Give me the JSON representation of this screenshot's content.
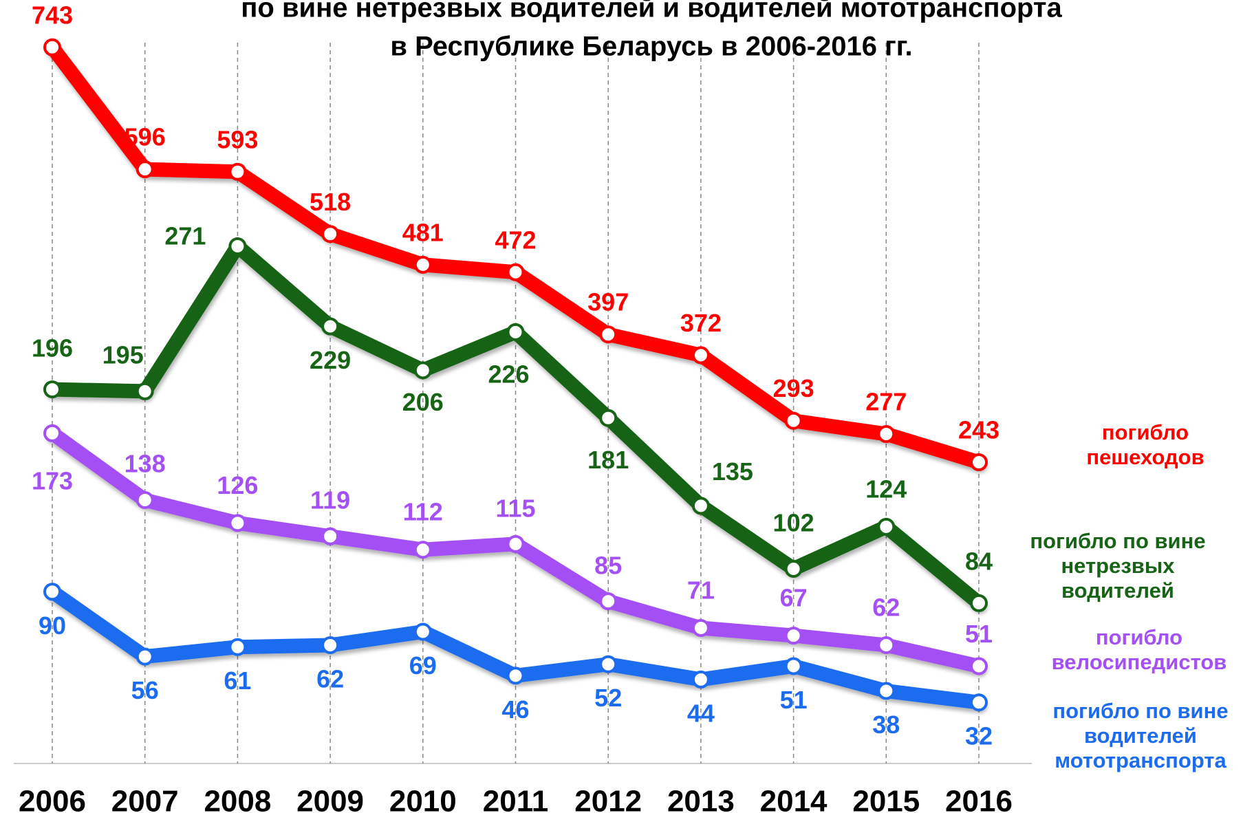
{
  "chart_data": {
    "type": "line",
    "title": [
      "по вине нетрезвых водителей и водителей мототранспорта",
      "в Республике Беларусь в 2006-2016 гг."
    ],
    "categories": [
      "2006",
      "2007",
      "2008",
      "2009",
      "2010",
      "2011",
      "2012",
      "2013",
      "2014",
      "2015",
      "2016"
    ],
    "ylim": [
      0,
      400
    ],
    "y2lim": [
      -120,
      800
    ],
    "series": [
      {
        "name": "погибло\nпешеходов",
        "color": "#ff0000",
        "axis": "y2",
        "values": [
          743,
          596,
          593,
          518,
          481,
          472,
          397,
          372,
          293,
          277,
          243
        ]
      },
      {
        "name": "погибло по вине\nнетрезвых\nводителей",
        "color": "#176417",
        "values": [
          196,
          195,
          271,
          229,
          206,
          226,
          181,
          135,
          102,
          124,
          84
        ]
      },
      {
        "name": "погибло\nвелосипедистов",
        "color": "#a450f5",
        "values": [
          173,
          138,
          126,
          119,
          112,
          115,
          85,
          71,
          67,
          62,
          51
        ]
      },
      {
        "name": "погибло по вине\nводителей\nмототранспорта",
        "color": "#1c6cf0",
        "values": [
          90,
          56,
          61,
          62,
          69,
          46,
          52,
          44,
          51,
          38,
          32
        ]
      }
    ]
  }
}
